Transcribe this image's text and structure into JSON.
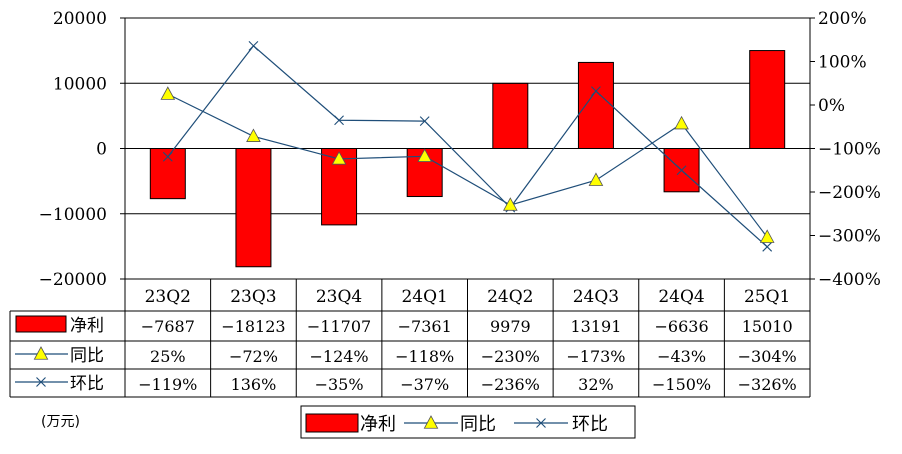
{
  "chart_data": {
    "type": "bar",
    "categories": [
      "23Q2",
      "23Q3",
      "23Q4",
      "24Q1",
      "24Q2",
      "24Q3",
      "24Q4",
      "25Q1"
    ],
    "series": [
      {
        "name": "净利",
        "kind": "bar",
        "axis": "left",
        "color": "#ff0000",
        "values": [
          -7687,
          -18123,
          -11707,
          -7361,
          9979,
          13191,
          -6636,
          15010
        ],
        "labels": [
          "-7687",
          "-18123",
          "-11707",
          "-7361",
          "9979",
          "13191",
          "-6636",
          "15010"
        ]
      },
      {
        "name": "同比",
        "kind": "line",
        "axis": "right",
        "marker": "triangle",
        "color": "#1f4e79",
        "marker_color": "#ffff00",
        "values": [
          25,
          -72,
          -124,
          -118,
          -230,
          -173,
          -43,
          -304
        ],
        "labels": [
          "25%",
          "-72%",
          "-124%",
          "-118%",
          "-230%",
          "-173%",
          "-43%",
          "-304%"
        ]
      },
      {
        "name": "环比",
        "kind": "line",
        "axis": "right",
        "marker": "x",
        "color": "#1f4e79",
        "values": [
          -119,
          136,
          -35,
          -37,
          -236,
          32,
          -150,
          -326
        ],
        "labels": [
          "-119%",
          "136%",
          "-35%",
          "-37%",
          "-236%",
          "32%",
          "-150%",
          "-326%"
        ]
      }
    ],
    "y_left": {
      "min": -20000,
      "max": 20000,
      "ticks": [
        "20000",
        "10000",
        "0",
        "-10000",
        "-20000"
      ]
    },
    "y_right": {
      "min": -400,
      "max": 200,
      "ticks": [
        "200%",
        "100%",
        "0%",
        "-100%",
        "-200%",
        "-300%",
        "-400%"
      ]
    },
    "unit_label": "(万元)",
    "legend": [
      "净利",
      "同比",
      "环比"
    ],
    "legend_position": "bottom",
    "grid": true
  },
  "colors": {
    "bar": "#ff0000",
    "line": "#1f4e79",
    "marker_fill": "#ffff00"
  }
}
